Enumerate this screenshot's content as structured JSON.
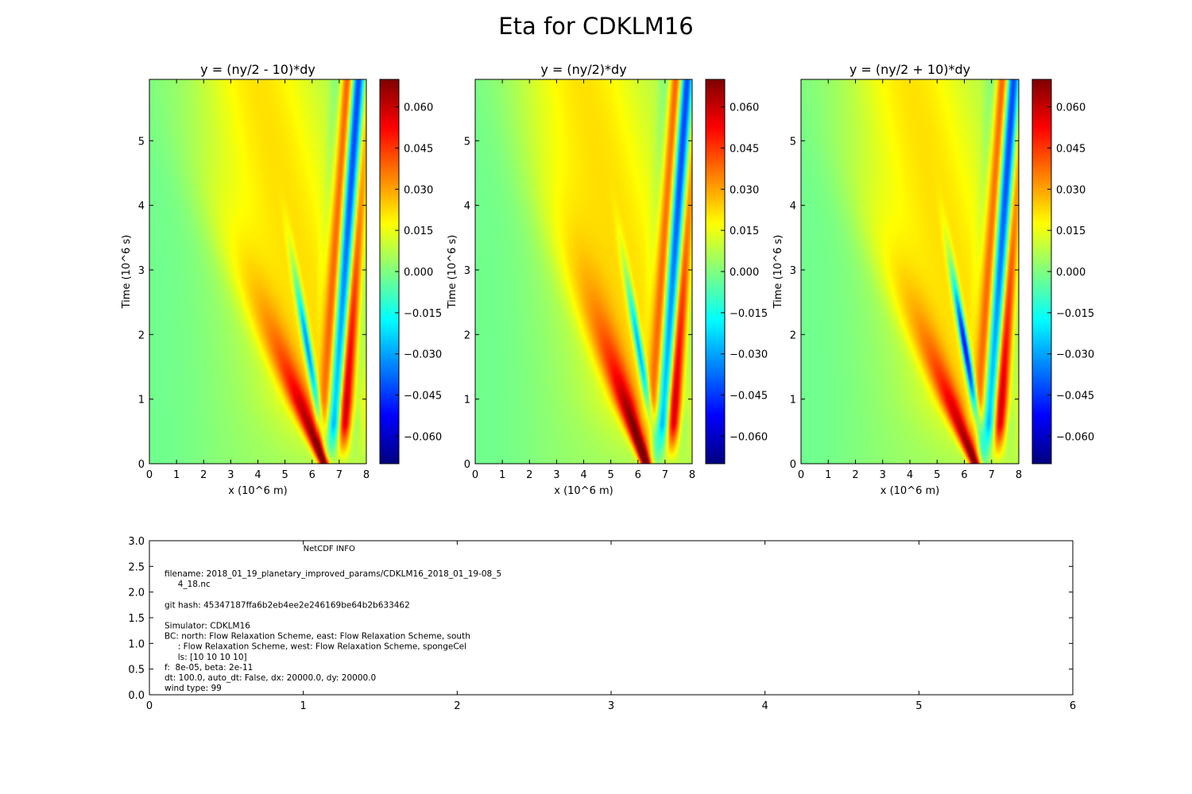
{
  "figure": {
    "title": "Eta for CDKLM16"
  },
  "chart_data": [
    {
      "type": "heatmap",
      "title": "y = (ny/2 - 10)*dy",
      "xlabel": "x (10^6 m)",
      "ylabel": "Time (10^6 s)",
      "xlim": [
        0,
        8
      ],
      "ylim": [
        0,
        5.95
      ],
      "xticks": [
        "0",
        "1",
        "2",
        "3",
        "4",
        "5",
        "6",
        "7",
        "8"
      ],
      "yticks": [
        "0",
        "1",
        "2",
        "3",
        "4",
        "5"
      ],
      "colormap": "jet",
      "clim": [
        -0.07,
        0.07
      ],
      "colorbar_ticks": [
        "0.060",
        "0.045",
        "0.030",
        "0.015",
        "0.000",
        "−0.015",
        "−0.030",
        "−0.045",
        "−0.060"
      ],
      "colorbar_values": [
        0.06,
        0.045,
        0.03,
        0.015,
        0.0,
        -0.015,
        -0.03,
        -0.045,
        -0.06
      ],
      "field": {
        "front_slope": 0.95,
        "main_amp": 0.075,
        "main_x0": 6.45,
        "trough_amp": -0.055,
        "trough_x0": 6.55,
        "wave_x0": 6.9,
        "wave_amp": 0.05
      }
    },
    {
      "type": "heatmap",
      "title": "y = (ny/2)*dy",
      "xlabel": "x (10^6 m)",
      "ylabel": "Time (10^6 s)",
      "xlim": [
        0,
        8
      ],
      "ylim": [
        0,
        5.95
      ],
      "xticks": [
        "0",
        "1",
        "2",
        "3",
        "4",
        "5",
        "6",
        "7",
        "8"
      ],
      "yticks": [
        "0",
        "1",
        "2",
        "3",
        "4",
        "5"
      ],
      "colormap": "jet",
      "clim": [
        -0.07,
        0.07
      ],
      "colorbar_ticks": [
        "0.060",
        "0.045",
        "0.030",
        "0.015",
        "0.000",
        "−0.015",
        "−0.030",
        "−0.045",
        "−0.060"
      ],
      "colorbar_values": [
        0.06,
        0.045,
        0.03,
        0.015,
        0.0,
        -0.015,
        -0.03,
        -0.045,
        -0.06
      ],
      "field": {
        "front_slope": 0.8,
        "main_amp": 0.085,
        "main_x0": 6.3,
        "trough_amp": -0.05,
        "trough_x0": 6.75,
        "wave_x0": 7.0,
        "wave_amp": 0.05
      }
    },
    {
      "type": "heatmap",
      "title": "y = (ny/2 + 10)*dy",
      "xlabel": "x (10^6 m)",
      "ylabel": "Time (10^6 s)",
      "xlim": [
        0,
        8
      ],
      "ylim": [
        0,
        5.95
      ],
      "xticks": [
        "0",
        "1",
        "2",
        "3",
        "4",
        "5",
        "6",
        "7",
        "8"
      ],
      "yticks": [
        "0",
        "1",
        "2",
        "3",
        "4",
        "5"
      ],
      "colormap": "jet",
      "clim": [
        -0.07,
        0.07
      ],
      "colorbar_ticks": [
        "0.060",
        "0.045",
        "0.030",
        "0.015",
        "0.000",
        "−0.015",
        "−0.030",
        "−0.045",
        "−0.060"
      ],
      "colorbar_values": [
        0.06,
        0.045,
        0.03,
        0.015,
        0.0,
        -0.015,
        -0.03,
        -0.045,
        -0.06
      ],
      "field": {
        "front_slope": 0.95,
        "main_amp": 0.07,
        "main_x0": 6.4,
        "trough_amp": -0.075,
        "trough_x0": 6.75,
        "wave_x0": 7.0,
        "wave_amp": 0.05
      }
    }
  ],
  "info_panel": {
    "xlim": [
      0,
      6
    ],
    "ylim": [
      0,
      3
    ],
    "xticks": [
      "0",
      "1",
      "2",
      "3",
      "4",
      "5",
      "6"
    ],
    "yticks": [
      "0.0",
      "0.5",
      "1.0",
      "1.5",
      "2.0",
      "2.5",
      "3.0"
    ],
    "heading": "NetCDF INFO",
    "lines": [
      "filename: 2018_01_19_planetary_improved_params/CDKLM16_2018_01_19-08_5",
      "     4_18.nc",
      "",
      "git hash: 45347187ffa6b2eb4ee2e246169be64b2b633462",
      "",
      "Simulator: CDKLM16",
      "BC: north: Flow Relaxation Scheme, east: Flow Relaxation Scheme, south",
      "     : Flow Relaxation Scheme, west: Flow Relaxation Scheme, spongeCel",
      "     ls: [10 10 10 10]",
      "f:  8e-05, beta: 2e-11",
      "dt: 100.0, auto_dt: False, dx: 20000.0, dy: 20000.0",
      "wind type: 99"
    ]
  }
}
